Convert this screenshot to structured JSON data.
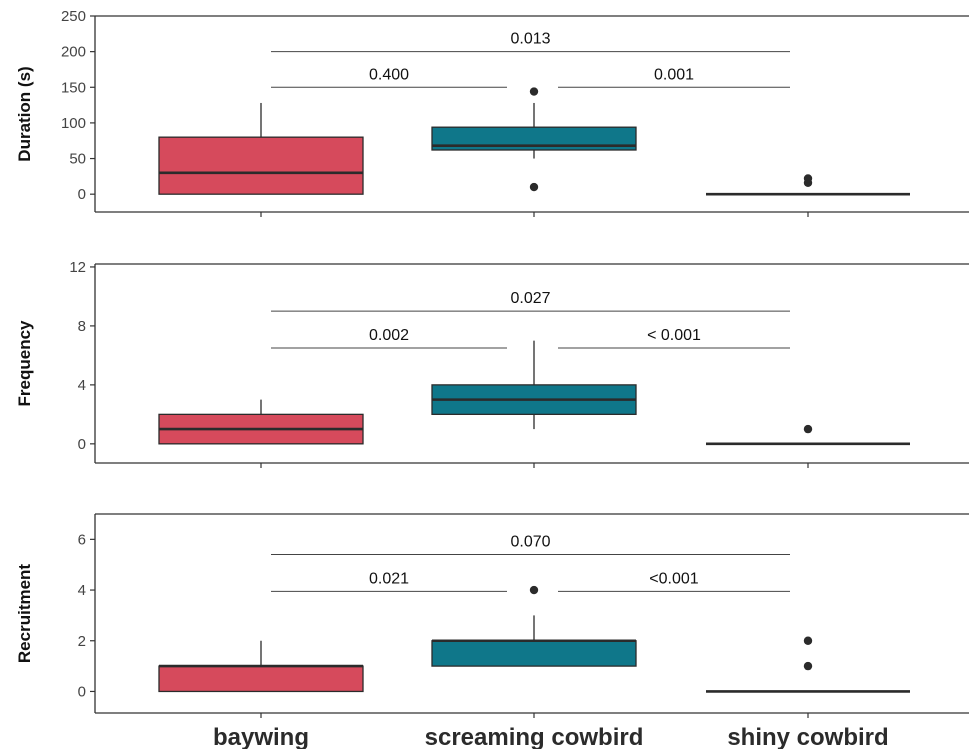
{
  "colors": {
    "baywing": "#d64a5c",
    "screaming_cowbird": "#0f778a",
    "shiny_cowbird": "#d64a5c",
    "outline": "#2b2b2b",
    "bracket": "#444444"
  },
  "chart_data": [
    {
      "type": "boxplot",
      "ylabel": "Duration (s)",
      "ylim": [
        -25,
        250
      ],
      "yticks": [
        0,
        50,
        100,
        150,
        200,
        250
      ],
      "categories": [
        "baywing",
        "screaming cowbird",
        "shiny cowbird"
      ],
      "boxes": [
        {
          "category": "baywing",
          "q1": 0,
          "median": 30,
          "q3": 80,
          "whisker_low": 0,
          "whisker_high": 128,
          "outliers": []
        },
        {
          "category": "screaming cowbird",
          "q1": 62,
          "median": 68,
          "q3": 94,
          "whisker_low": 50,
          "whisker_high": 128,
          "outliers": [
            144,
            10
          ]
        },
        {
          "category": "shiny cowbird",
          "q1": 0,
          "median": 0,
          "q3": 0,
          "whisker_low": 0,
          "whisker_high": 0,
          "outliers": [
            16,
            22
          ]
        }
      ],
      "comparisons": [
        {
          "from": "baywing",
          "to": "shiny cowbird",
          "y": 200,
          "label": "0.013"
        },
        {
          "from": "baywing",
          "to": "screaming cowbird",
          "y": 150,
          "label": "0.400"
        },
        {
          "from": "screaming cowbird",
          "to": "shiny cowbird",
          "y": 150,
          "label": "0.001"
        }
      ]
    },
    {
      "type": "boxplot",
      "ylabel": "Frequency",
      "ylim": [
        -1.3,
        12.2
      ],
      "yticks": [
        0,
        4,
        8,
        12
      ],
      "categories": [
        "baywing",
        "screaming cowbird",
        "shiny cowbird"
      ],
      "boxes": [
        {
          "category": "baywing",
          "q1": 0,
          "median": 1,
          "q3": 2,
          "whisker_low": 0,
          "whisker_high": 3,
          "outliers": []
        },
        {
          "category": "screaming cowbird",
          "q1": 2,
          "median": 3,
          "q3": 4,
          "whisker_low": 1,
          "whisker_high": 7,
          "outliers": []
        },
        {
          "category": "shiny cowbird",
          "q1": 0,
          "median": 0,
          "q3": 0,
          "whisker_low": 0,
          "whisker_high": 0,
          "outliers": [
            1
          ]
        }
      ],
      "comparisons": [
        {
          "from": "baywing",
          "to": "shiny cowbird",
          "y": 9,
          "label": "0.027"
        },
        {
          "from": "baywing",
          "to": "screaming cowbird",
          "y": 6.5,
          "label": "0.002"
        },
        {
          "from": "screaming cowbird",
          "to": "shiny cowbird",
          "y": 6.5,
          "label": "< 0.001"
        }
      ]
    },
    {
      "type": "boxplot",
      "ylabel": "Recruitment",
      "ylim": [
        -0.85,
        7
      ],
      "yticks": [
        0,
        2,
        4,
        6
      ],
      "categories": [
        "baywing",
        "screaming cowbird",
        "shiny cowbird"
      ],
      "boxes": [
        {
          "category": "baywing",
          "q1": 0,
          "median": 1,
          "q3": 1,
          "whisker_low": 0,
          "whisker_high": 2,
          "outliers": []
        },
        {
          "category": "screaming cowbird",
          "q1": 1,
          "median": 2,
          "q3": 2,
          "whisker_low": 1,
          "whisker_high": 3,
          "outliers": [
            4
          ]
        },
        {
          "category": "shiny cowbird",
          "q1": 0,
          "median": 0,
          "q3": 0,
          "whisker_low": 0,
          "whisker_high": 0,
          "outliers": [
            2,
            1
          ]
        }
      ],
      "comparisons": [
        {
          "from": "baywing",
          "to": "shiny cowbird",
          "y": 5.4,
          "label": "0.070"
        },
        {
          "from": "baywing",
          "to": "screaming cowbird",
          "y": 3.95,
          "label": "0.021"
        },
        {
          "from": "screaming cowbird",
          "to": "shiny cowbird",
          "y": 3.95,
          "label": "<0.001"
        }
      ]
    }
  ]
}
